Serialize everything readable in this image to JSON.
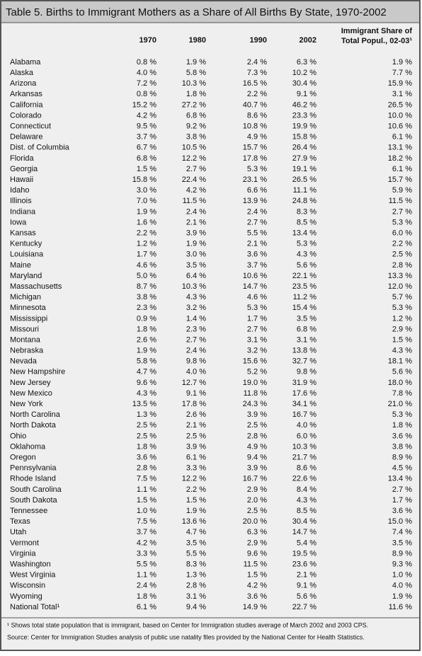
{
  "title": "Table 5. Births to Immigrant Mothers as a Share of All Births By State, 1970-2002",
  "table": {
    "header": [
      "1970",
      "1980",
      "1990",
      "2002",
      [
        "Immigrant Share of",
        "Total Popul., 02-03¹"
      ]
    ],
    "rows": [
      [
        "Alabama",
        "0.8 %",
        "1.9 %",
        "2.4 %",
        "6.3 %",
        "1.9 %"
      ],
      [
        "Alaska",
        "4.0 %",
        "5.8 %",
        "7.3 %",
        "10.2 %",
        "7.7 %"
      ],
      [
        "Arizona",
        "7.2 %",
        "10.3 %",
        "16.5 %",
        "30.4 %",
        "15.9 %"
      ],
      [
        "Arkansas",
        "0.8 %",
        "1.8 %",
        "2.2 %",
        "9.1 %",
        "3.1 %"
      ],
      [
        "California",
        "15.2 %",
        "27.2 %",
        "40.7 %",
        "46.2 %",
        "26.5 %"
      ],
      [
        "Colorado",
        "4.2 %",
        "6.8 %",
        "8.6 %",
        "23.3 %",
        "10.0 %"
      ],
      [
        "Connecticut",
        "9.5 %",
        "9.2 %",
        "10.8 %",
        "19.9 %",
        "10.6 %"
      ],
      [
        "Delaware",
        "3.7 %",
        "3.8 %",
        "4.9 %",
        "15.8 %",
        "6.1 %"
      ],
      [
        "Dist. of Columbia",
        "6.7 %",
        "10.5 %",
        "15.7 %",
        "26.4 %",
        "13.1 %"
      ],
      [
        "Florida",
        "6.8 %",
        "12.2 %",
        "17.8 %",
        "27.9 %",
        "18.2 %"
      ],
      [
        "Georgia",
        "1.5 %",
        "2.7 %",
        "5.3 %",
        "19.1 %",
        "6.1 %"
      ],
      [
        "Hawaii",
        "15.8 %",
        "22.4 %",
        "23.1 %",
        "26.5 %",
        "15.7 %"
      ],
      [
        "Idaho",
        "3.0 %",
        "4.2 %",
        "6.6 %",
        "11.1 %",
        "5.9 %"
      ],
      [
        "Illinois",
        "7.0 %",
        "11.5 %",
        "13.9 %",
        "24.8 %",
        "11.5 %"
      ],
      [
        "Indiana",
        "1.9 %",
        "2.4 %",
        "2.4 %",
        "8.3 %",
        "2.7 %"
      ],
      [
        "Iowa",
        "1.6 %",
        "2.1 %",
        "2.7 %",
        "8.5 %",
        "5.3 %"
      ],
      [
        "Kansas",
        "2.2 %",
        "3.9 %",
        "5.5 %",
        "13.4 %",
        "6.0 %"
      ],
      [
        "Kentucky",
        "1.2 %",
        "1.9 %",
        "2.1 %",
        "5.3 %",
        "2.2 %"
      ],
      [
        "Louisiana",
        "1.7 %",
        "3.0 %",
        "3.6 %",
        "4.3 %",
        "2.5 %"
      ],
      [
        "Maine",
        "4.6 %",
        "3.5 %",
        "3.7 %",
        "5.6 %",
        "2.8 %"
      ],
      [
        "Maryland",
        "5.0 %",
        "6.4 %",
        "10.6 %",
        "22.1 %",
        "13.3 %"
      ],
      [
        "Massachusetts",
        "8.7 %",
        "10.3 %",
        "14.7 %",
        "23.5 %",
        "12.0 %"
      ],
      [
        "Michigan",
        "3.8 %",
        "4.3 %",
        "4.6 %",
        "11.2 %",
        "5.7 %"
      ],
      [
        "Minnesota",
        "2.3 %",
        "3.2 %",
        "5.3 %",
        "15.4 %",
        "5.3 %"
      ],
      [
        "Mississippi",
        "0.9 %",
        "1.4 %",
        "1.7 %",
        "3.5 %",
        "1.2 %"
      ],
      [
        "Missouri",
        "1.8 %",
        "2.3 %",
        "2.7 %",
        "6.8 %",
        "2.9 %"
      ],
      [
        "Montana",
        "2.6 %",
        "2.7 %",
        "3.1 %",
        "3.1 %",
        "1.5 %"
      ],
      [
        "Nebraska",
        "1.9 %",
        "2.4 %",
        "3.2 %",
        "13.8 %",
        "4.3 %"
      ],
      [
        "Nevada",
        "5.8 %",
        "9.8 %",
        "15.6 %",
        "32.7 %",
        "18.1 %"
      ],
      [
        "New Hampshire",
        "4.7 %",
        "4.0 %",
        "5.2 %",
        "9.8 %",
        "5.6 %"
      ],
      [
        "New Jersey",
        "9.6 %",
        "12.7 %",
        "19.0 %",
        "31.9 %",
        "18.0 %"
      ],
      [
        "New Mexico",
        "4.3 %",
        "9.1 %",
        "11.8 %",
        "17.6 %",
        "7.8 %"
      ],
      [
        "New York",
        "13.5 %",
        "17.8 %",
        "24.3 %",
        "34.1 %",
        "21.0 %"
      ],
      [
        "North Carolina",
        "1.3 %",
        "2.6 %",
        "3.9 %",
        "16.7 %",
        "5.3 %"
      ],
      [
        "North Dakota",
        "2.5 %",
        "2.1 %",
        "2.5 %",
        "4.0 %",
        "1.8 %"
      ],
      [
        "Ohio",
        "2.5 %",
        "2.5 %",
        "2.8 %",
        "6.0 %",
        "3.6 %"
      ],
      [
        "Oklahoma",
        "1.8 %",
        "3.9 %",
        "4.9 %",
        "10.3 %",
        "3.8 %"
      ],
      [
        "Oregon",
        "3.6 %",
        "6.1 %",
        "9.4 %",
        "21.7 %",
        "8.9 %"
      ],
      [
        "Pennsylvania",
        "2.8 %",
        "3.3 %",
        "3.9 %",
        "8.6 %",
        "4.5 %"
      ],
      [
        "Rhode Island",
        "7.5 %",
        "12.2 %",
        "16.7 %",
        "22.6 %",
        "13.4 %"
      ],
      [
        "South Carolina",
        "1.1 %",
        "2.2 %",
        "2.9 %",
        "8.4 %",
        "2.7 %"
      ],
      [
        "South Dakota",
        "1.5 %",
        "1.5 %",
        "2.0 %",
        "4.3 %",
        "1.7 %"
      ],
      [
        "Tennessee",
        "1.0 %",
        "1.9 %",
        "2.5 %",
        "8.5 %",
        "3.6 %"
      ],
      [
        "Texas",
        "7.5 %",
        "13.6 %",
        "20.0 %",
        "30.4 %",
        "15.0 %"
      ],
      [
        "Utah",
        "3.7 %",
        "4.7 %",
        "6.3 %",
        "14.7 %",
        "7.4 %"
      ],
      [
        "Vermont",
        "4.2 %",
        "3.5 %",
        "2.9 %",
        "5.4 %",
        "3.5 %"
      ],
      [
        "Virginia",
        "3.3 %",
        "5.5 %",
        "9.6 %",
        "19.5 %",
        "8.9 %"
      ],
      [
        "Washington",
        "5.5 %",
        "8.3 %",
        "11.5 %",
        "23.6 %",
        "9.3 %"
      ],
      [
        "West Virginia",
        "1.1 %",
        "1.3 %",
        "1.5 %",
        "2.1 %",
        "1.0 %"
      ],
      [
        "Wisconsin",
        "2.4 %",
        "2.8 %",
        "4.2 %",
        "9.1 %",
        "4.0 %"
      ],
      [
        "Wyoming",
        "1.8 %",
        "3.1 %",
        "3.6 %",
        "5.6 %",
        "1.9 %"
      ],
      [
        "National Total¹",
        "6.1 %",
        "9.4 %",
        "14.9 %",
        "22.7 %",
        "11.6 %"
      ]
    ]
  },
  "footnotes": [
    "¹ Shows total state population that is immigrant, based on Center for Immigration studies average of March 2002 and 2003 CPS.",
    "Source:  Center for Immigration Studies analysis of public use natality files provided by the National Center for Health Statistics."
  ]
}
